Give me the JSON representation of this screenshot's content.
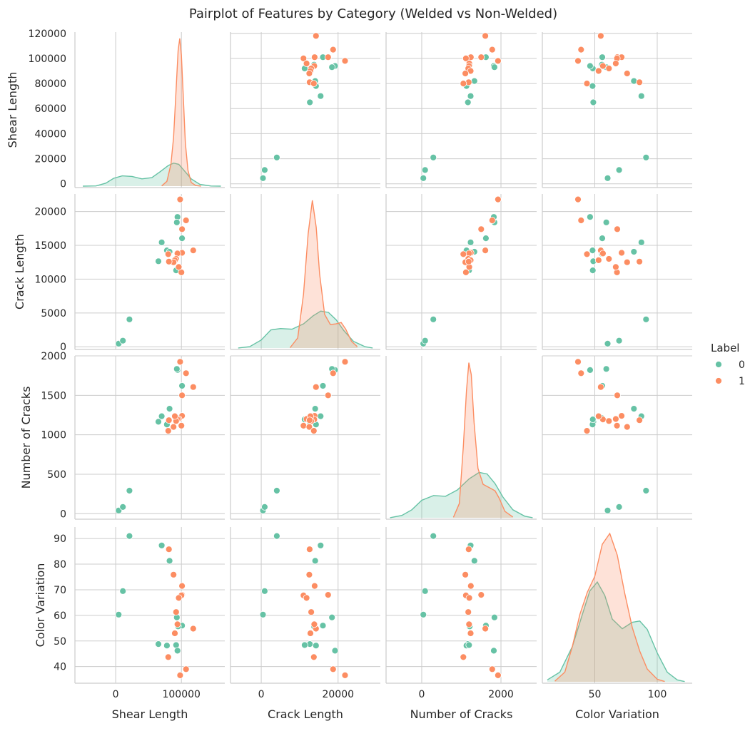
{
  "chart_data": {
    "type": "scatter",
    "subtype": "pairplot",
    "title": "Pairplot of Features by Category (Welded vs Non-Welded)",
    "features": [
      "Shear Length",
      "Crack Length",
      "Number of Cracks",
      "Color Variation"
    ],
    "hue": "Label",
    "legend": {
      "title": "Label",
      "placement": "right",
      "entries": [
        {
          "label": "0",
          "color": "#66c2a5"
        },
        {
          "label": "1",
          "color": "#fc8d62"
        }
      ]
    },
    "diagonal": "kde",
    "grid": true,
    "axes": [
      {
        "name": "Shear Length",
        "range": [
          -62000,
          166000
        ],
        "ticks": [
          "0",
          "100000"
        ],
        "row_range": [
          -3000,
          121000
        ],
        "row_ticks": [
          "0",
          "20000",
          "40000",
          "60000",
          "80000",
          "100000",
          "120000"
        ]
      },
      {
        "name": "Crack Length",
        "range": [
          -8000,
          31000
        ],
        "ticks": [
          "0",
          "20000"
        ],
        "row_range": [
          -400,
          22600
        ],
        "row_ticks": [
          "0",
          "5000",
          "10000",
          "15000",
          "20000"
        ]
      },
      {
        "name": "Number of Cracks",
        "range": [
          -900,
          2900
        ],
        "ticks": [
          "0",
          "2000"
        ],
        "row_range": [
          -70,
          2000
        ],
        "row_ticks": [
          "0",
          "500",
          "1000",
          "1500",
          "2000"
        ]
      },
      {
        "name": "Color Variation",
        "range": [
          8,
          128
        ],
        "ticks": [
          "50",
          "100"
        ],
        "row_range": [
          33.5,
          94.5
        ],
        "row_ticks": [
          "40",
          "50",
          "60",
          "70",
          "80",
          "90"
        ]
      }
    ],
    "series": [
      {
        "name": "0",
        "color": "#66c2a5",
        "points": [
          [
            4500,
            450,
            40,
            60.3
          ],
          [
            11000,
            900,
            85,
            69.5
          ],
          [
            21000,
            4050,
            292,
            91
          ],
          [
            65000,
            12650,
            1165,
            48.8
          ],
          [
            70000,
            15450,
            1235,
            87.3
          ],
          [
            78000,
            14250,
            1130,
            48.2
          ],
          [
            82000,
            14050,
            1330,
            81.3
          ],
          [
            92000,
            11300,
            1195,
            48.4
          ],
          [
            94000,
            19200,
            1820,
            46.2
          ],
          [
            93000,
            18400,
            1835,
            59.2
          ],
          [
            101000,
            16050,
            1620,
            56
          ],
          [
            95000,
            13750,
            1210,
            55.7
          ]
        ]
      },
      {
        "name": "1",
        "color": "#fc8d62",
        "points": [
          [
            118000,
            14250,
            1605,
            54.8
          ],
          [
            107000,
            18700,
            1780,
            39
          ],
          [
            98000,
            21800,
            1925,
            36.6
          ],
          [
            101000,
            17400,
            1500,
            68
          ],
          [
            101000,
            13900,
            1240,
            71.5
          ],
          [
            100000,
            11000,
            1115,
            67.8
          ],
          [
            96000,
            11800,
            1200,
            66.8
          ],
          [
            94000,
            13800,
            1195,
            56.5
          ],
          [
            92000,
            13000,
            1175,
            61.3
          ],
          [
            90000,
            12800,
            1235,
            53
          ],
          [
            88000,
            12500,
            1100,
            75.9
          ],
          [
            81000,
            12600,
            1185,
            85.8
          ],
          [
            80000,
            13700,
            1050,
            43.7
          ]
        ]
      }
    ],
    "kde": {
      "Shear Length": {
        "0": [
          [
            -50000,
            1e-06
          ],
          [
            -30000,
            2e-05
          ],
          [
            -15000,
            0.00025
          ],
          [
            -3000,
            0.00065
          ],
          [
            10000,
            0.00085
          ],
          [
            25000,
            0.0008
          ],
          [
            40000,
            0.0006
          ],
          [
            55000,
            0.0007
          ],
          [
            68000,
            0.0012
          ],
          [
            80000,
            0.0017
          ],
          [
            88000,
            0.0019
          ],
          [
            96000,
            0.0018
          ],
          [
            104000,
            0.0013
          ],
          [
            115000,
            0.0006
          ],
          [
            128000,
            0.00015
          ],
          [
            145000,
            1e-05
          ],
          [
            160000,
            1e-06
          ]
        ],
        "1": [
          [
            70000,
            2e-05
          ],
          [
            78000,
            0.0004
          ],
          [
            84000,
            0.0018
          ],
          [
            88000,
            0.004
          ],
          [
            92000,
            0.008
          ],
          [
            95000,
            0.0112
          ],
          [
            97500,
            0.0122
          ],
          [
            100000,
            0.0108
          ],
          [
            103000,
            0.0072
          ],
          [
            106000,
            0.0036
          ],
          [
            110000,
            0.0013
          ],
          [
            115000,
            0.0003
          ],
          [
            122000,
            5e-05
          ],
          [
            130000,
            5e-06
          ]
        ]
      },
      "Crack Length": {
        "0": [
          [
            -6000,
            1e-06
          ],
          [
            -3000,
            2e-05
          ],
          [
            0,
            0.00012
          ],
          [
            2500,
            0.00027
          ],
          [
            5000,
            0.00029
          ],
          [
            8000,
            0.00028
          ],
          [
            11000,
            0.00036
          ],
          [
            13500,
            0.00048
          ],
          [
            15500,
            0.00055
          ],
          [
            17500,
            0.00053
          ],
          [
            19500,
            0.00042
          ],
          [
            21500,
            0.00026
          ],
          [
            24000,
            0.0001
          ],
          [
            27000,
            2e-05
          ],
          [
            29000,
            1e-06
          ]
        ],
        "1": [
          [
            7500,
            5e-06
          ],
          [
            9500,
            0.00015
          ],
          [
            11000,
            0.0008
          ],
          [
            12200,
            0.0017
          ],
          [
            13300,
            0.0022
          ],
          [
            14300,
            0.0018
          ],
          [
            15200,
            0.0011
          ],
          [
            16500,
            0.0005
          ],
          [
            18000,
            0.00035
          ],
          [
            19500,
            0.00036
          ],
          [
            20800,
            0.00038
          ],
          [
            22000,
            0.00028
          ],
          [
            23500,
            0.0001
          ],
          [
            25000,
            2e-05
          ]
        ]
      },
      "Number of Cracks": {
        "0": [
          [
            -800,
            1e-06
          ],
          [
            -500,
            3e-05
          ],
          [
            -250,
            0.0001
          ],
          [
            0,
            0.00022
          ],
          [
            300,
            0.00028
          ],
          [
            600,
            0.00027
          ],
          [
            900,
            0.00035
          ],
          [
            1200,
            0.00049
          ],
          [
            1450,
            0.00057
          ],
          [
            1650,
            0.00055
          ],
          [
            1850,
            0.00043
          ],
          [
            2050,
            0.00026
          ],
          [
            2300,
            0.0001
          ],
          [
            2600,
            2e-05
          ],
          [
            2800,
            1e-06
          ]
        ],
        "1": [
          [
            800,
            5e-06
          ],
          [
            950,
            0.00018
          ],
          [
            1050,
            0.0009
          ],
          [
            1130,
            0.0016
          ],
          [
            1190,
            0.00195
          ],
          [
            1250,
            0.0018
          ],
          [
            1320,
            0.0012
          ],
          [
            1420,
            0.00062
          ],
          [
            1550,
            0.00042
          ],
          [
            1700,
            0.00038
          ],
          [
            1850,
            0.00034
          ],
          [
            1950,
            0.00025
          ],
          [
            2100,
            8e-05
          ],
          [
            2300,
            1e-05
          ]
        ]
      },
      "Color Variation": {
        "0": [
          [
            12,
            0.0003
          ],
          [
            22,
            0.0015
          ],
          [
            32,
            0.0055
          ],
          [
            40,
            0.0105
          ],
          [
            46,
            0.0142
          ],
          [
            52,
            0.0156
          ],
          [
            58,
            0.0135
          ],
          [
            64,
            0.0098
          ],
          [
            72,
            0.0083
          ],
          [
            80,
            0.0093
          ],
          [
            86,
            0.0095
          ],
          [
            92,
            0.0082
          ],
          [
            100,
            0.0045
          ],
          [
            108,
            0.0015
          ],
          [
            116,
            0.0003
          ],
          [
            122,
            3e-05
          ]
        ],
        "1": [
          [
            18,
            0.0001
          ],
          [
            26,
            0.0015
          ],
          [
            32,
            0.0055
          ],
          [
            38,
            0.0105
          ],
          [
            44,
            0.014
          ],
          [
            50,
            0.0165
          ],
          [
            56,
            0.0215
          ],
          [
            62,
            0.0232
          ],
          [
            68,
            0.0198
          ],
          [
            74,
            0.0138
          ],
          [
            80,
            0.0085
          ],
          [
            86,
            0.0048
          ],
          [
            92,
            0.002
          ],
          [
            100,
            0.0004
          ],
          [
            106,
            5e-05
          ]
        ]
      }
    }
  }
}
